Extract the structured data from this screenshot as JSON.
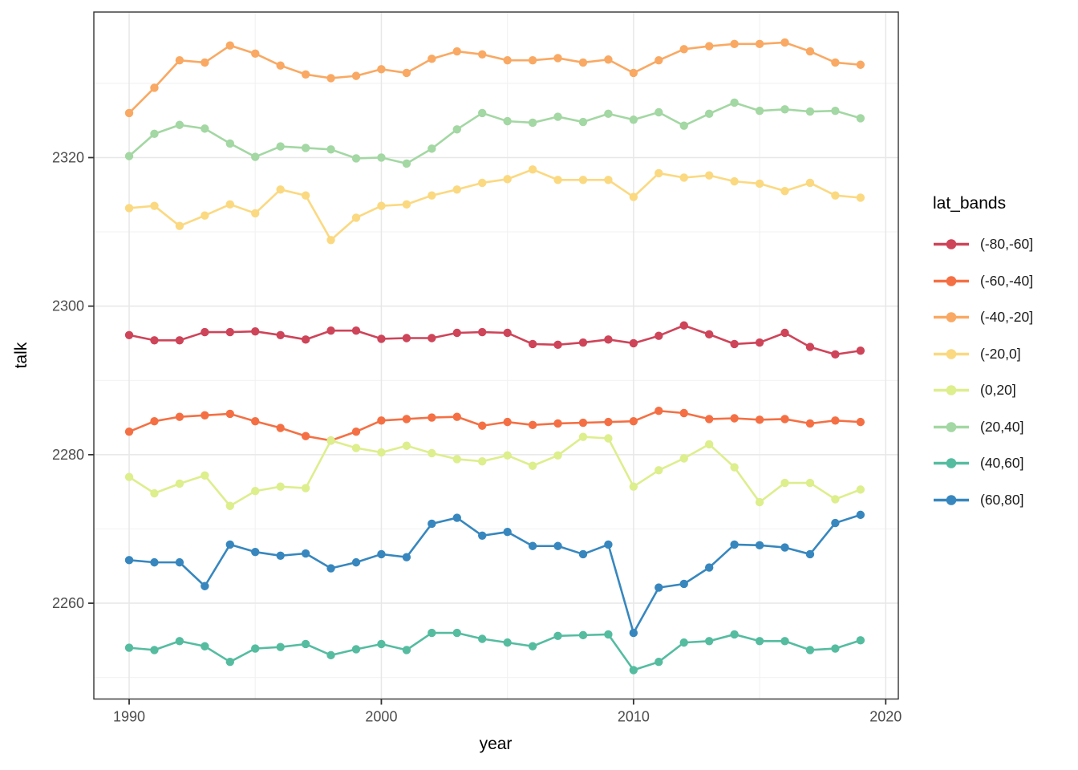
{
  "figure": {
    "background": "#ffffff"
  },
  "style": {
    "panel_background": "#ffffff",
    "panel_border_color": "#333333",
    "grid_major_color": "#e7e7e7",
    "grid_minor_color": "#f2f2f2",
    "tick_mark_color": "#333333",
    "tick_label_color": "#4d4d4d",
    "axis_title_color": "#000000"
  },
  "legend": {
    "title": "lat_bands"
  },
  "chart_data": {
    "type": "line",
    "title": "",
    "xlabel": "year",
    "ylabel": "talk",
    "legend_title": "lat_bands",
    "legend_position": "right",
    "grid": true,
    "point_markers": true,
    "xlim": [
      1988.6,
      2020.5
    ],
    "ylim": [
      2247.1,
      2339.6
    ],
    "x_ticks": [
      1990,
      2000,
      2010,
      2020
    ],
    "x_minor_gridlines": [
      1995,
      2005,
      2015
    ],
    "y_ticks": [
      2260,
      2280,
      2300,
      2320
    ],
    "y_minor_gridlines": [
      2250,
      2270,
      2290,
      2310,
      2330
    ],
    "x": [
      1990,
      1991,
      1992,
      1993,
      1994,
      1995,
      1996,
      1997,
      1998,
      1999,
      2000,
      2001,
      2002,
      2003,
      2004,
      2005,
      2006,
      2007,
      2008,
      2009,
      2010,
      2011,
      2012,
      2013,
      2014,
      2015,
      2016,
      2017,
      2018,
      2019
    ],
    "series": [
      {
        "name": "(-80,-60]",
        "color": "#CE4459",
        "values": [
          2296.1,
          2295.4,
          2295.4,
          2296.5,
          2296.5,
          2296.6,
          2296.1,
          2295.5,
          2296.7,
          2296.7,
          2295.6,
          2295.7,
          2295.7,
          2296.4,
          2296.5,
          2296.4,
          2294.9,
          2294.8,
          2295.1,
          2295.5,
          2295.0,
          2296.0,
          2297.4,
          2296.2,
          2294.9,
          2295.1,
          2296.4,
          2294.5,
          2293.5,
          2294.0
        ]
      },
      {
        "name": "(-60,-40]",
        "color": "#F47044",
        "values": [
          2283.1,
          2284.5,
          2285.1,
          2285.3,
          2285.5,
          2284.5,
          2283.6,
          2282.5,
          2281.9,
          2283.1,
          2284.6,
          2284.8,
          2285.0,
          2285.1,
          2283.9,
          2284.4,
          2284.0,
          2284.2,
          2284.3,
          2284.4,
          2284.5,
          2285.9,
          2285.6,
          2284.8,
          2284.9,
          2284.7,
          2284.8,
          2284.2,
          2284.6,
          2284.4
        ]
      },
      {
        "name": "(-40,-20]",
        "color": "#F9A963",
        "values": [
          2326.0,
          2329.4,
          2333.1,
          2332.8,
          2335.1,
          2334.0,
          2332.4,
          2331.2,
          2330.7,
          2331.0,
          2331.9,
          2331.4,
          2333.3,
          2334.3,
          2333.9,
          2333.1,
          2333.1,
          2333.4,
          2332.8,
          2333.2,
          2331.4,
          2333.1,
          2334.6,
          2335.0,
          2335.3,
          2335.3,
          2335.5,
          2334.3,
          2332.8,
          2332.5
        ]
      },
      {
        "name": "(-20,0]",
        "color": "#FBD981",
        "values": [
          2313.2,
          2313.5,
          2310.8,
          2312.2,
          2313.7,
          2312.5,
          2315.7,
          2314.9,
          2308.9,
          2311.9,
          2313.5,
          2313.7,
          2314.9,
          2315.7,
          2316.6,
          2317.1,
          2318.4,
          2317.0,
          2317.0,
          2317.0,
          2314.7,
          2317.9,
          2317.3,
          2317.6,
          2316.8,
          2316.5,
          2315.5,
          2316.6,
          2314.9,
          2314.6
        ]
      },
      {
        "name": "(0,20]",
        "color": "#DDEE8D",
        "values": [
          2277.0,
          2274.8,
          2276.1,
          2277.2,
          2273.1,
          2275.1,
          2275.7,
          2275.5,
          2281.9,
          2280.9,
          2280.3,
          2281.2,
          2280.2,
          2279.4,
          2279.1,
          2279.9,
          2278.5,
          2279.9,
          2282.4,
          2282.2,
          2275.7,
          2277.9,
          2279.5,
          2281.4,
          2278.3,
          2273.6,
          2276.2,
          2276.2,
          2274.0,
          2275.3
        ]
      },
      {
        "name": "(20,40]",
        "color": "#A3D7A3",
        "values": [
          2320.2,
          2323.2,
          2324.4,
          2323.9,
          2321.9,
          2320.1,
          2321.5,
          2321.3,
          2321.1,
          2319.9,
          2320.0,
          2319.2,
          2321.2,
          2323.8,
          2326.0,
          2324.9,
          2324.7,
          2325.5,
          2324.8,
          2325.9,
          2325.1,
          2326.1,
          2324.3,
          2325.9,
          2327.4,
          2326.3,
          2326.5,
          2326.2,
          2326.3,
          2325.3
        ]
      },
      {
        "name": "(40,60]",
        "color": "#55BCA0",
        "values": [
          2254.0,
          2253.7,
          2254.9,
          2254.2,
          2252.1,
          2253.9,
          2254.1,
          2254.5,
          2253.0,
          2253.8,
          2254.5,
          2253.7,
          2256.0,
          2256.0,
          2255.2,
          2254.7,
          2254.2,
          2255.6,
          2255.7,
          2255.8,
          2251.0,
          2252.1,
          2254.7,
          2254.9,
          2255.8,
          2254.9,
          2254.9,
          2253.7,
          2253.9,
          2255.0
        ]
      },
      {
        "name": "(60,80]",
        "color": "#3787BE",
        "values": [
          2265.8,
          2265.5,
          2265.5,
          2262.3,
          2267.9,
          2266.9,
          2266.4,
          2266.7,
          2264.7,
          2265.5,
          2266.6,
          2266.2,
          2270.7,
          2271.5,
          2269.1,
          2269.6,
          2267.7,
          2267.7,
          2266.6,
          2267.9,
          2256.0,
          2262.1,
          2262.6,
          2264.8,
          2267.9,
          2267.8,
          2267.5,
          2266.6,
          2270.8,
          2271.9
        ]
      }
    ]
  }
}
